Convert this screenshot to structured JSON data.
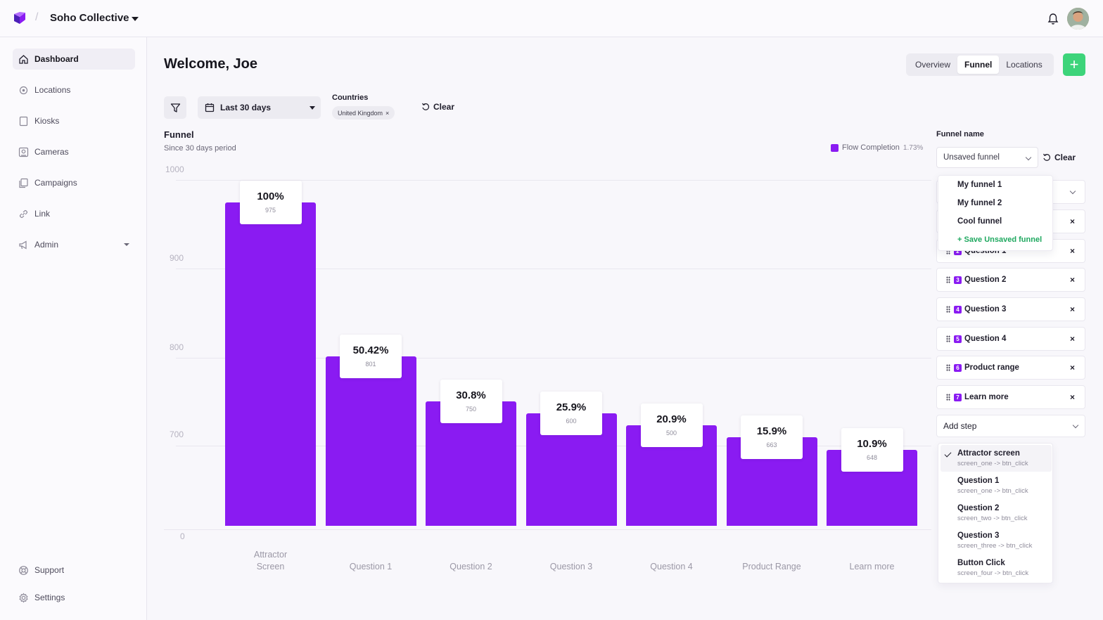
{
  "header": {
    "org_name": "Soho Collective",
    "separator": "/",
    "brand_color": "#8a1bf2"
  },
  "sidebar": {
    "items": [
      {
        "label": "Dashboard",
        "icon": "home-icon",
        "active": true
      },
      {
        "label": "Locations",
        "icon": "location-icon"
      },
      {
        "label": "Kiosks",
        "icon": "kiosk-icon"
      },
      {
        "label": "Cameras",
        "icon": "camera-icon"
      },
      {
        "label": "Campaigns",
        "icon": "campaigns-icon"
      },
      {
        "label": "Link",
        "icon": "link-icon"
      },
      {
        "label": "Admin",
        "icon": "megaphone-icon",
        "expandable": true
      }
    ],
    "bottom": [
      {
        "label": "Support",
        "icon": "support-icon"
      },
      {
        "label": "Settings",
        "icon": "gear-icon"
      }
    ]
  },
  "main": {
    "welcome": "Welcome, Joe",
    "tabs": [
      "Overview",
      "Funnel",
      "Locations"
    ],
    "active_tab": "Funnel",
    "add_label": "+",
    "filters": {
      "date_range": "Last 30 days",
      "countries_label": "Countries",
      "country_chip": "United Kingdom",
      "chip_remove": "×",
      "clear": "Clear"
    }
  },
  "chart_data": {
    "type": "bar",
    "title": "Funnel",
    "subtitle": "Since 30 days period",
    "legend": {
      "name": "Flow Completion",
      "value": "1.73%",
      "color": "#8a1bf2",
      "placement": "top-right"
    },
    "y_ticks": [
      "1000",
      "900",
      "800",
      "700",
      "0"
    ],
    "categories": [
      "Attractor Screen",
      "Question 1",
      "Question 2",
      "Question 3",
      "Question 4",
      "Product Range",
      "Learn more"
    ],
    "values": [
      975,
      801,
      750,
      600,
      500,
      663,
      648
    ],
    "percent_labels": [
      "100%",
      "50.42%",
      "30.8%",
      "25.9%",
      "20.9%",
      "15.9%",
      "10.9%"
    ],
    "count_labels": [
      "975",
      "801",
      "750",
      "600",
      "500",
      "663",
      "648"
    ],
    "bar_fill_fraction": [
      1.0,
      0.5042,
      0.308,
      0.259,
      0.209,
      0.159,
      0.109
    ],
    "grid": true
  },
  "funnel_panel": {
    "name_label": "Funnel name",
    "selected": "Unsaved funnel",
    "clear": "Clear",
    "options": [
      "My funnel 1",
      "My funnel 2",
      "Cool funnel"
    ],
    "save_option": "+ Save Unsaved funnel",
    "steps": [
      {
        "num": "2",
        "label": "Question 1"
      },
      {
        "num": "3",
        "label": "Question 2"
      },
      {
        "num": "4",
        "label": "Question 3"
      },
      {
        "num": "5",
        "label": "Question 4"
      },
      {
        "num": "6",
        "label": "Product range"
      },
      {
        "num": "7",
        "label": "Learn more"
      }
    ],
    "remove_glyph": "×",
    "add_step": "Add step",
    "step_options": [
      {
        "title": "Attractor screen",
        "sub": "screen_one -> btn_click",
        "selected": true
      },
      {
        "title": "Question 1",
        "sub": "screen_one -> btn_click"
      },
      {
        "title": "Question 2",
        "sub": "screen_two -> btn_click"
      },
      {
        "title": "Question 3",
        "sub": "screen_three -> btn_click"
      },
      {
        "title": "Button Click",
        "sub": "screen_four -> btn_click"
      }
    ]
  }
}
